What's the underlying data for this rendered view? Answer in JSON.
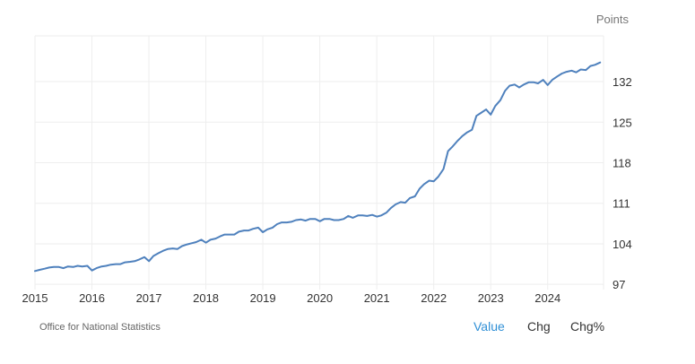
{
  "ylabel": "Points",
  "source_label": "Office for National Statistics",
  "tabs": [
    {
      "label": "Value",
      "active": true
    },
    {
      "label": "Chg",
      "active": false
    },
    {
      "label": "Chg%",
      "active": false
    }
  ],
  "colors": {
    "line": "#4f81bd",
    "grid": "#eeeeee",
    "active_tab": "#2f8fd6"
  },
  "chart_data": {
    "type": "line",
    "title": "",
    "xlabel": "",
    "ylabel": "Points",
    "x_ticks": [
      "2015",
      "2016",
      "2017",
      "2018",
      "2019",
      "2020",
      "2021",
      "2022",
      "2023",
      "2024"
    ],
    "y_ticks": [
      97,
      104,
      111,
      118,
      125,
      132
    ],
    "ylim": [
      96.1,
      139.9
    ],
    "xlim": [
      2015.0,
      2024.98
    ],
    "grid": true,
    "series": [
      {
        "name": "",
        "points": [
          [
            2015.0,
            99.3
          ],
          [
            2015.08,
            99.5
          ],
          [
            2015.17,
            99.7
          ],
          [
            2015.25,
            99.9
          ],
          [
            2015.33,
            100.0
          ],
          [
            2015.42,
            100.0
          ],
          [
            2015.5,
            99.8
          ],
          [
            2015.58,
            100.1
          ],
          [
            2015.67,
            100.0
          ],
          [
            2015.75,
            100.2
          ],
          [
            2015.83,
            100.1
          ],
          [
            2015.92,
            100.2
          ],
          [
            2016.0,
            99.4
          ],
          [
            2016.08,
            99.8
          ],
          [
            2016.17,
            100.1
          ],
          [
            2016.25,
            100.2
          ],
          [
            2016.33,
            100.4
          ],
          [
            2016.42,
            100.5
          ],
          [
            2016.5,
            100.5
          ],
          [
            2016.58,
            100.8
          ],
          [
            2016.67,
            100.9
          ],
          [
            2016.75,
            101.0
          ],
          [
            2016.83,
            101.3
          ],
          [
            2016.92,
            101.7
          ],
          [
            2017.0,
            101.0
          ],
          [
            2017.08,
            101.9
          ],
          [
            2017.17,
            102.4
          ],
          [
            2017.25,
            102.8
          ],
          [
            2017.33,
            103.1
          ],
          [
            2017.42,
            103.2
          ],
          [
            2017.5,
            103.1
          ],
          [
            2017.58,
            103.6
          ],
          [
            2017.67,
            103.9
          ],
          [
            2017.75,
            104.1
          ],
          [
            2017.83,
            104.3
          ],
          [
            2017.92,
            104.7
          ],
          [
            2018.0,
            104.2
          ],
          [
            2018.08,
            104.7
          ],
          [
            2018.17,
            104.9
          ],
          [
            2018.25,
            105.3
          ],
          [
            2018.33,
            105.6
          ],
          [
            2018.42,
            105.6
          ],
          [
            2018.5,
            105.6
          ],
          [
            2018.58,
            106.1
          ],
          [
            2018.67,
            106.3
          ],
          [
            2018.75,
            106.3
          ],
          [
            2018.83,
            106.6
          ],
          [
            2018.92,
            106.8
          ],
          [
            2019.0,
            106.0
          ],
          [
            2019.08,
            106.5
          ],
          [
            2019.17,
            106.8
          ],
          [
            2019.25,
            107.4
          ],
          [
            2019.33,
            107.7
          ],
          [
            2019.42,
            107.7
          ],
          [
            2019.5,
            107.8
          ],
          [
            2019.58,
            108.1
          ],
          [
            2019.67,
            108.2
          ],
          [
            2019.75,
            108.0
          ],
          [
            2019.83,
            108.3
          ],
          [
            2019.92,
            108.3
          ],
          [
            2020.0,
            107.9
          ],
          [
            2020.08,
            108.3
          ],
          [
            2020.17,
            108.3
          ],
          [
            2020.25,
            108.1
          ],
          [
            2020.33,
            108.1
          ],
          [
            2020.42,
            108.3
          ],
          [
            2020.5,
            108.8
          ],
          [
            2020.58,
            108.5
          ],
          [
            2020.67,
            108.9
          ],
          [
            2020.75,
            108.9
          ],
          [
            2020.83,
            108.8
          ],
          [
            2020.92,
            109.0
          ],
          [
            2021.0,
            108.7
          ],
          [
            2021.08,
            108.9
          ],
          [
            2021.17,
            109.4
          ],
          [
            2021.25,
            110.2
          ],
          [
            2021.33,
            110.8
          ],
          [
            2021.42,
            111.2
          ],
          [
            2021.5,
            111.1
          ],
          [
            2021.58,
            111.9
          ],
          [
            2021.67,
            112.2
          ],
          [
            2021.75,
            113.5
          ],
          [
            2021.83,
            114.3
          ],
          [
            2021.92,
            114.9
          ],
          [
            2022.0,
            114.8
          ],
          [
            2022.08,
            115.6
          ],
          [
            2022.17,
            116.9
          ],
          [
            2022.25,
            120.0
          ],
          [
            2022.33,
            120.8
          ],
          [
            2022.42,
            121.8
          ],
          [
            2022.5,
            122.6
          ],
          [
            2022.58,
            123.2
          ],
          [
            2022.67,
            123.7
          ],
          [
            2022.75,
            126.1
          ],
          [
            2022.83,
            126.6
          ],
          [
            2022.92,
            127.2
          ],
          [
            2023.0,
            126.3
          ],
          [
            2023.08,
            127.8
          ],
          [
            2023.17,
            128.8
          ],
          [
            2023.25,
            130.4
          ],
          [
            2023.33,
            131.3
          ],
          [
            2023.42,
            131.5
          ],
          [
            2023.5,
            131.0
          ],
          [
            2023.58,
            131.5
          ],
          [
            2023.67,
            131.9
          ],
          [
            2023.75,
            131.9
          ],
          [
            2023.83,
            131.7
          ],
          [
            2023.92,
            132.3
          ],
          [
            2024.0,
            131.4
          ],
          [
            2024.08,
            132.3
          ],
          [
            2024.17,
            132.9
          ],
          [
            2024.25,
            133.4
          ],
          [
            2024.33,
            133.7
          ],
          [
            2024.42,
            133.9
          ],
          [
            2024.5,
            133.6
          ],
          [
            2024.58,
            134.1
          ],
          [
            2024.67,
            134.0
          ],
          [
            2024.75,
            134.7
          ],
          [
            2024.83,
            134.9
          ],
          [
            2024.92,
            135.3
          ]
        ]
      }
    ]
  }
}
